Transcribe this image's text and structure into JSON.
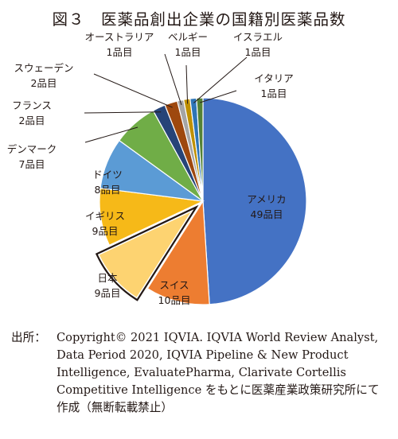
{
  "chart_data": {
    "type": "pie",
    "title": "図３　医薬品創出企業の国籍別医薬品数",
    "unit": "品目",
    "slices": [
      {
        "label": "アメリカ",
        "value": 49,
        "display": "49品目",
        "color": "#4472c4",
        "text_color": "#ffffff",
        "inside": true,
        "highlight": false
      },
      {
        "label": "スイス",
        "value": 10,
        "display": "10品目",
        "color": "#ed7d31",
        "text_color": "#ffffff",
        "inside": true,
        "highlight": false
      },
      {
        "label": "日本",
        "value": 9,
        "display": "9品目",
        "color": "#fdd371",
        "text_color": "#231815",
        "inside": true,
        "highlight": true
      },
      {
        "label": "イギリス",
        "value": 9,
        "display": "9品目",
        "color": "#f6b918",
        "text_color": "#231815",
        "inside": true,
        "highlight": false
      },
      {
        "label": "ドイツ",
        "value": 8,
        "display": "8品目",
        "color": "#5b9bd5",
        "text_color": "#ffffff",
        "inside": true,
        "highlight": false
      },
      {
        "label": "デンマーク",
        "value": 7,
        "display": "7品目",
        "color": "#70ad47",
        "text_color": "#231815",
        "inside": false,
        "highlight": false
      },
      {
        "label": "フランス",
        "value": 2,
        "display": "2品目",
        "color": "#264478",
        "text_color": "#231815",
        "inside": false,
        "highlight": false
      },
      {
        "label": "スウェーデン",
        "value": 2,
        "display": "2品目",
        "color": "#9e480e",
        "text_color": "#231815",
        "inside": false,
        "highlight": false
      },
      {
        "label": "オーストラリア",
        "value": 1,
        "display": "1品目",
        "color": "#a5a5a5",
        "text_color": "#231815",
        "inside": false,
        "highlight": false
      },
      {
        "label": "ベルギー",
        "value": 1,
        "display": "1品目",
        "color": "#bf9000",
        "text_color": "#231815",
        "inside": false,
        "highlight": false
      },
      {
        "label": "イスラエル",
        "value": 1,
        "display": "1品目",
        "color": "#2e75b6",
        "text_color": "#231815",
        "inside": false,
        "highlight": false
      },
      {
        "label": "イタリア",
        "value": 1,
        "display": "1品目",
        "color": "#548235",
        "text_color": "#231815",
        "inside": false,
        "highlight": false
      }
    ]
  },
  "source": {
    "label": "出所：",
    "text": "Copyright© 2021 IQVIA. IQVIA World Review Analyst, Data Period 2020, IQVIA Pipeline & New Product Intelligence, EvaluatePharma, Clarivate Cortellis Competitive Intelligence をもとに医薬産業政策研究所にて作成（無断転載禁止）"
  }
}
